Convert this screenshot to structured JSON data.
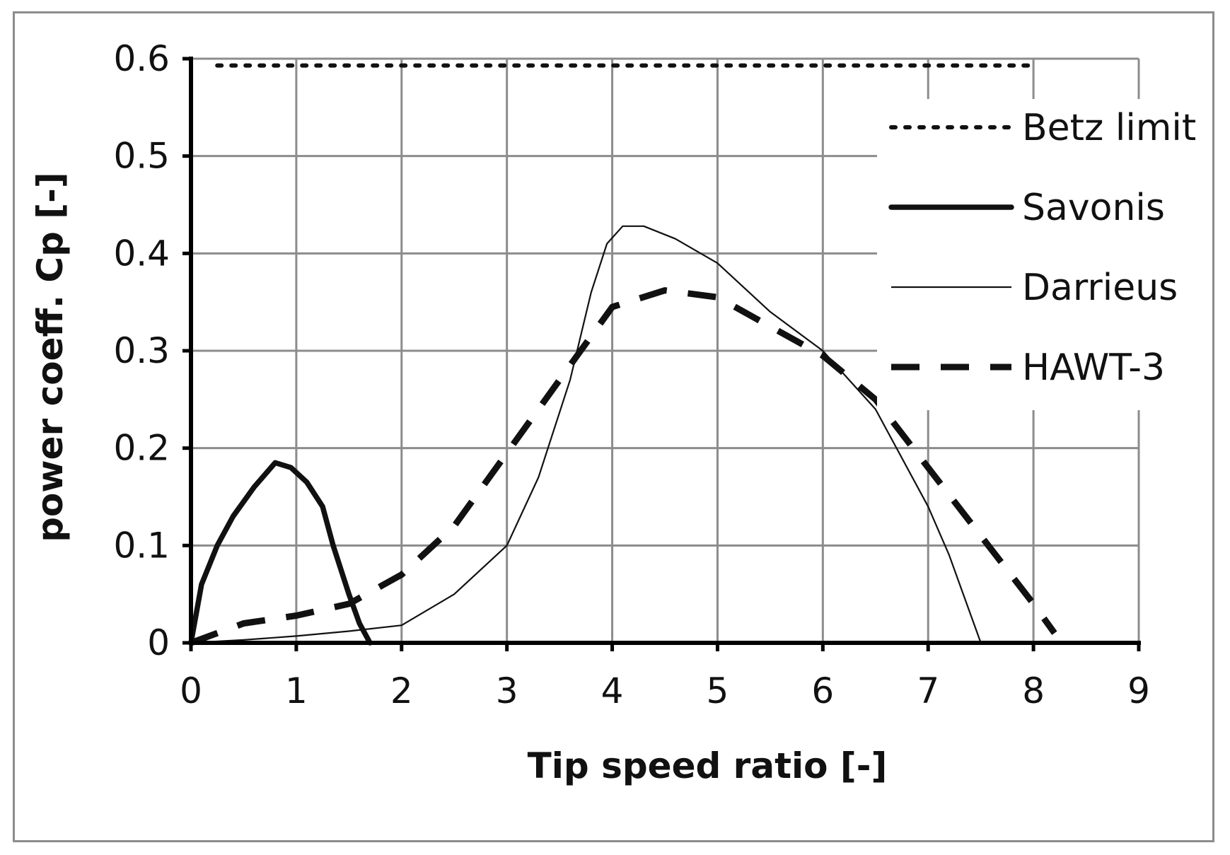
{
  "chart_data": {
    "type": "line",
    "title": "",
    "xlabel": "Tip speed ratio [-]",
    "ylabel": "power coeff. Cp [-]",
    "xlim": [
      0,
      9
    ],
    "ylim": [
      0,
      0.6
    ],
    "xticks": [
      0,
      1,
      2,
      3,
      4,
      5,
      6,
      7,
      8,
      9
    ],
    "yticks": [
      0,
      0.1,
      0.2,
      0.3,
      0.4,
      0.5,
      0.6
    ],
    "xtick_labels": [
      "0",
      "1",
      "2",
      "3",
      "4",
      "5",
      "6",
      "7",
      "8",
      "9"
    ],
    "ytick_labels": [
      "0",
      "0.1",
      "0.2",
      "0.3",
      "0.4",
      "0.5",
      "0.6"
    ],
    "grid": true,
    "legend_position": "top-right",
    "series": [
      {
        "name": "Betz limit",
        "style": "dotted",
        "color": "#111111",
        "x": [
          0.25,
          8.0
        ],
        "y": [
          0.593,
          0.593
        ]
      },
      {
        "name": "Savonis",
        "style": "solid-thick",
        "color": "#111111",
        "x": [
          0,
          0.1,
          0.25,
          0.4,
          0.6,
          0.8,
          0.95,
          1.1,
          1.25,
          1.35,
          1.5,
          1.6,
          1.7
        ],
        "y": [
          0,
          0.06,
          0.1,
          0.13,
          0.16,
          0.185,
          0.18,
          0.165,
          0.14,
          0.1,
          0.05,
          0.02,
          0
        ]
      },
      {
        "name": "Darrieus",
        "style": "solid-thin",
        "color": "#111111",
        "x": [
          0,
          0.5,
          1.0,
          1.5,
          2.0,
          2.5,
          3.0,
          3.3,
          3.6,
          3.8,
          3.95,
          4.1,
          4.3,
          4.6,
          5.0,
          5.5,
          6.0,
          6.5,
          7.0,
          7.2,
          7.4,
          7.5
        ],
        "y": [
          0,
          0.003,
          0.007,
          0.012,
          0.018,
          0.05,
          0.1,
          0.17,
          0.27,
          0.36,
          0.41,
          0.428,
          0.428,
          0.415,
          0.39,
          0.34,
          0.3,
          0.24,
          0.14,
          0.09,
          0.03,
          0
        ]
      },
      {
        "name": "HAWT-3",
        "style": "dashed-thick",
        "color": "#111111",
        "x": [
          0,
          0.5,
          1.0,
          1.5,
          2.0,
          2.5,
          3.0,
          3.5,
          4.0,
          4.5,
          5.0,
          5.5,
          6.0,
          6.5,
          7.0,
          7.5,
          8.0,
          8.2
        ],
        "y": [
          0,
          0.02,
          0.028,
          0.04,
          0.07,
          0.12,
          0.195,
          0.27,
          0.345,
          0.362,
          0.355,
          0.325,
          0.295,
          0.25,
          0.18,
          0.11,
          0.04,
          0.01
        ]
      }
    ]
  }
}
